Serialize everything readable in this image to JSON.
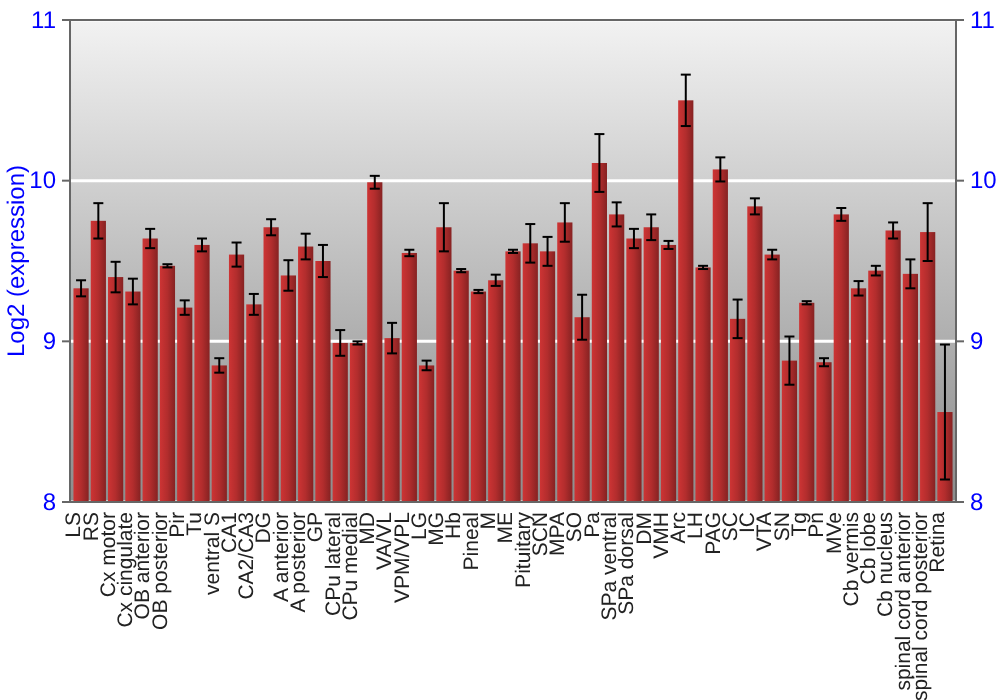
{
  "chart_data": {
    "type": "bar",
    "ylabel": "Log2 (expression)",
    "categories": [
      "LS",
      "RS",
      "Cx motor",
      "Cx cingulate",
      "OB anterior",
      "OB posterior",
      "Pir",
      "Tu",
      "ventral S",
      "CA1",
      "CA2/CA3",
      "DG",
      "A anterior",
      "A posterior",
      "GP",
      "CPu lateral",
      "CPu medial",
      "MD",
      "VA/VL",
      "VPM/VPL",
      "LG",
      "MG",
      "Hb",
      "Pineal",
      "M",
      "ME",
      "Pituitary",
      "SCN",
      "MPA",
      "SO",
      "Pa",
      "SPa ventral",
      "SPa dorsal",
      "DM",
      "VMH",
      "Arc",
      "LH",
      "PAG",
      "SC",
      "IC",
      "VTA",
      "SN",
      "Tg",
      "Pn",
      "MVe",
      "Cb vermis",
      "Cb lobe",
      "Cb nucleus",
      "spinal cord anterior",
      "spinal cord posterior",
      "Retina"
    ],
    "values": [
      9.33,
      9.75,
      9.4,
      9.31,
      9.64,
      9.47,
      9.21,
      9.6,
      8.85,
      9.54,
      9.23,
      9.71,
      9.41,
      9.59,
      9.5,
      8.99,
      8.99,
      9.99,
      9.02,
      9.55,
      8.85,
      9.71,
      9.44,
      9.31,
      9.38,
      9.56,
      9.61,
      9.56,
      9.74,
      9.15,
      10.11,
      9.79,
      9.64,
      9.71,
      9.6,
      10.5,
      9.46,
      10.07,
      9.14,
      9.84,
      9.54,
      8.88,
      9.24,
      8.87,
      9.79,
      9.33,
      9.44,
      9.69,
      9.42,
      9.68,
      8.56
    ],
    "errors": [
      0.05,
      0.11,
      0.095,
      0.08,
      0.06,
      0.01,
      0.045,
      0.04,
      0.045,
      0.075,
      0.065,
      0.05,
      0.095,
      0.08,
      0.1,
      0.08,
      0.01,
      0.04,
      0.095,
      0.02,
      0.03,
      0.15,
      0.01,
      0.01,
      0.035,
      0.01,
      0.12,
      0.09,
      0.12,
      0.14,
      0.18,
      0.075,
      0.06,
      0.08,
      0.025,
      0.16,
      0.01,
      0.075,
      0.12,
      0.05,
      0.03,
      0.15,
      0.01,
      0.025,
      0.04,
      0.045,
      0.03,
      0.05,
      0.09,
      0.18,
      0.42
    ],
    "color": "#b22d2d",
    "ylim": [
      8,
      11
    ],
    "yticks": [
      8,
      9,
      10,
      11
    ],
    "y2lim": [
      8,
      11
    ],
    "y2ticks": [
      8,
      9,
      10,
      11
    ],
    "grid": "y"
  }
}
